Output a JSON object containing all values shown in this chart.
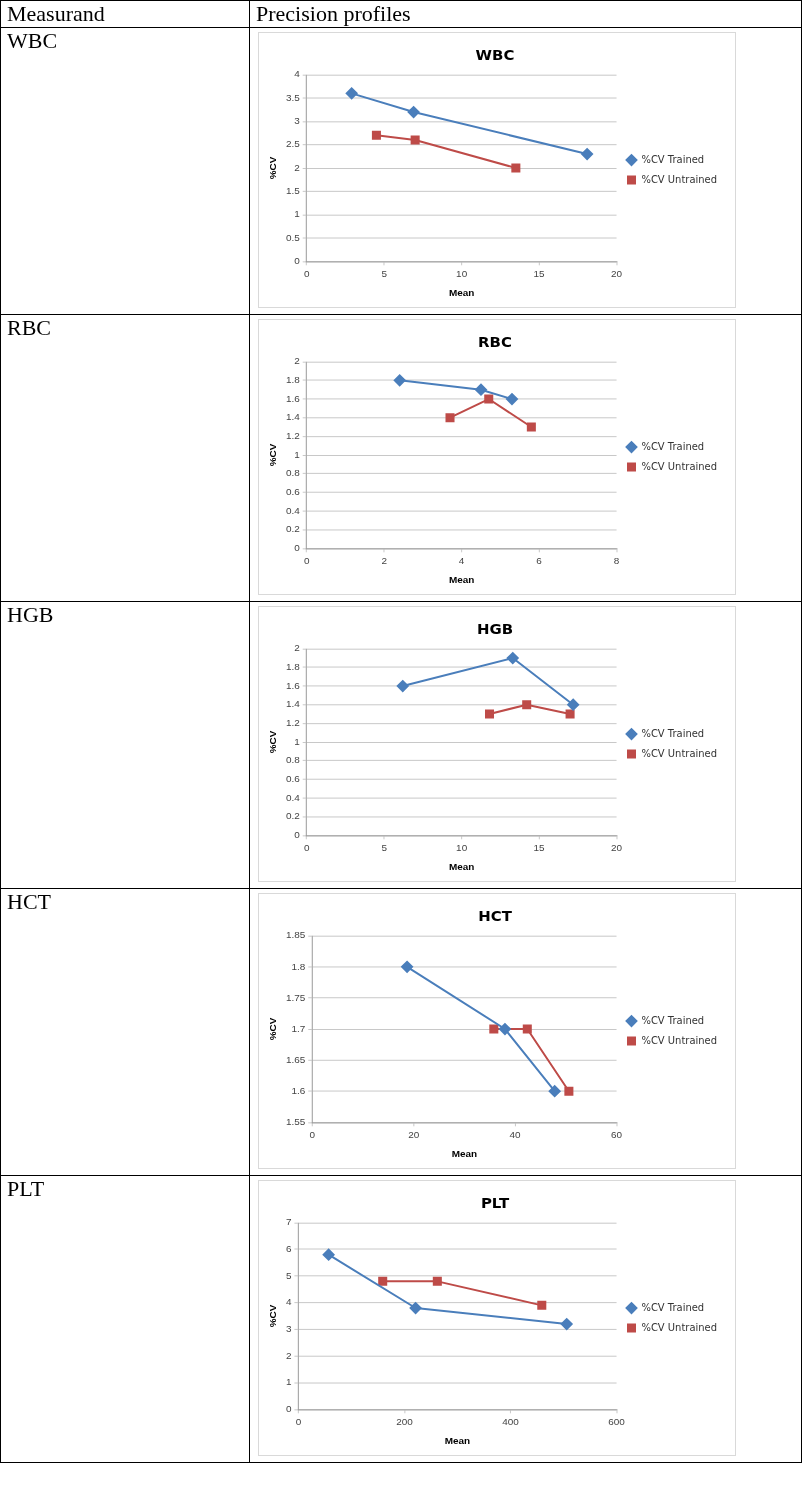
{
  "chart_data": [
    {
      "type": "line",
      "title": "WBC",
      "xlabel": "Mean",
      "ylabel": "%CV",
      "annotations": [
        "WBC",
        "Measurand",
        "Precision profiles"
      ],
      "xlim": [
        0,
        20
      ],
      "xticks": [
        0,
        5,
        10,
        15,
        20
      ],
      "ylim": [
        0,
        4
      ],
      "yticks": [
        0,
        0.5,
        1,
        1.5,
        2,
        2.5,
        3,
        3.5,
        4
      ],
      "grid": "y",
      "legend": "right",
      "series": [
        {
          "name": "%CV Trained",
          "color": "#4a7ebb",
          "marker": "diamond",
          "x": [
            2.9,
            6.9,
            18.1
          ],
          "values": [
            3.6,
            3.2,
            2.3
          ]
        },
        {
          "name": "%CV Untrained",
          "color": "#be4b48",
          "marker": "square",
          "x": [
            4.5,
            7.0,
            13.5
          ],
          "values": [
            2.7,
            2.6,
            2.0
          ]
        }
      ]
    },
    {
      "type": "line",
      "title": "RBC",
      "xlabel": "Mean",
      "ylabel": "%CV",
      "annotations": [
        "RBC"
      ],
      "xlim": [
        0,
        8
      ],
      "xticks": [
        0,
        2,
        4,
        6,
        8
      ],
      "ylim": [
        0,
        2
      ],
      "yticks": [
        0,
        0.2,
        0.4,
        0.6,
        0.8,
        1,
        1.2,
        1.4,
        1.6,
        1.8,
        2
      ],
      "grid": "y",
      "legend": "right",
      "series": [
        {
          "name": "%CV Trained",
          "color": "#4a7ebb",
          "marker": "diamond",
          "x": [
            2.4,
            4.5,
            5.3
          ],
          "values": [
            1.8,
            1.7,
            1.6
          ]
        },
        {
          "name": "%CV Untrained",
          "color": "#be4b48",
          "marker": "square",
          "x": [
            3.7,
            4.7,
            5.8
          ],
          "values": [
            1.4,
            1.6,
            1.3
          ]
        }
      ]
    },
    {
      "type": "line",
      "title": "HGB",
      "xlabel": "Mean",
      "ylabel": "%CV",
      "annotations": [
        "HGB"
      ],
      "xlim": [
        0,
        20
      ],
      "xticks": [
        0,
        5,
        10,
        15,
        20
      ],
      "ylim": [
        0,
        2
      ],
      "yticks": [
        0,
        0.2,
        0.4,
        0.6,
        0.8,
        1,
        1.2,
        1.4,
        1.6,
        1.8,
        2
      ],
      "grid": "y",
      "legend": "right",
      "series": [
        {
          "name": "%CV Trained",
          "color": "#4a7ebb",
          "marker": "diamond",
          "x": [
            6.2,
            13.3,
            17.2
          ],
          "values": [
            1.6,
            1.9,
            1.4
          ]
        },
        {
          "name": "%CV Untrained",
          "color": "#be4b48",
          "marker": "square",
          "x": [
            11.8,
            14.2,
            17.0
          ],
          "values": [
            1.3,
            1.4,
            1.3
          ]
        }
      ]
    },
    {
      "type": "line",
      "title": "HCT",
      "xlabel": "Mean",
      "ylabel": "%CV",
      "annotations": [
        "HCT"
      ],
      "xlim": [
        0,
        60
      ],
      "xticks": [
        0,
        20,
        40,
        60
      ],
      "ylim": [
        1.55,
        1.85
      ],
      "yticks": [
        1.55,
        1.6,
        1.65,
        1.7,
        1.75,
        1.8,
        1.85
      ],
      "grid": "y",
      "legend": "right",
      "series": [
        {
          "name": "%CV Trained",
          "color": "#4a7ebb",
          "marker": "diamond",
          "x": [
            18.7,
            38.0,
            47.8
          ],
          "values": [
            1.8,
            1.7,
            1.6
          ]
        },
        {
          "name": "%CV Untrained",
          "color": "#be4b48",
          "marker": "square",
          "x": [
            35.8,
            42.4,
            50.6
          ],
          "values": [
            1.7,
            1.7,
            1.6
          ]
        }
      ]
    },
    {
      "type": "line",
      "title": "PLT",
      "xlabel": "Mean",
      "ylabel": "%CV",
      "annotations": [
        "PLT"
      ],
      "xlim": [
        0,
        600
      ],
      "xticks": [
        0,
        200,
        400,
        600
      ],
      "ylim": [
        0,
        7
      ],
      "yticks": [
        0,
        1,
        2,
        3,
        4,
        5,
        6,
        7
      ],
      "grid": "y",
      "legend": "right",
      "series": [
        {
          "name": "%CV Trained",
          "color": "#4a7ebb",
          "marker": "diamond",
          "x": [
            57,
            221,
            506
          ],
          "values": [
            5.8,
            3.8,
            3.2
          ]
        },
        {
          "name": "%CV Untrained",
          "color": "#be4b48",
          "marker": "square",
          "x": [
            159,
            262,
            459
          ],
          "values": [
            4.8,
            4.8,
            3.9
          ]
        }
      ]
    }
  ]
}
